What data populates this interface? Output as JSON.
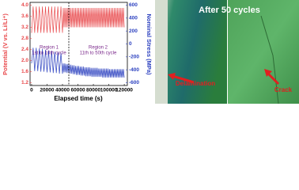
{
  "chart_data": {
    "type": "line",
    "xlabel": "Elapsed time (s)",
    "ylabel": "Potential (V vs. Li/Li⁺)",
    "y2label": "Nominal Stress (MPa)",
    "annotations": [
      "Region 1",
      "1st to 10th cycle",
      "Region 2",
      "11th to 50th cycle"
    ],
    "xlim": [
      -2000,
      124000
    ],
    "xticks": [
      0,
      20000,
      40000,
      60000,
      80000,
      100000,
      120000
    ],
    "ylim": [
      1.1,
      4.1
    ],
    "yticks": [
      1.2,
      1.6,
      {
        "value": 2,
        "label": "2.0"
      },
      2.4,
      2.8,
      3.2,
      3.6,
      {
        "value": 4,
        "label": "4.0"
      }
    ],
    "y2lim": [
      -643,
      643
    ],
    "y2ticks": [
      -600,
      -400,
      -200,
      0,
      200,
      400,
      600
    ],
    "x": [
      0,
      2000,
      4000,
      6000,
      8000,
      10000,
      12000,
      14000,
      16000,
      18000,
      20000,
      22000,
      24000,
      26000,
      28000,
      30000,
      32000,
      34000,
      36000,
      38000,
      40000,
      41000,
      42000,
      43000,
      44000,
      45000,
      46000,
      47000,
      48000,
      49000,
      50000,
      51000,
      52000,
      53000,
      54000,
      55000,
      56000,
      57000,
      58000,
      59000,
      60000,
      61000,
      62000,
      63000,
      64000,
      65000,
      66000,
      67000,
      68000,
      69000,
      70000,
      71000,
      72000,
      73000,
      74000,
      75000,
      76000,
      77000,
      78000,
      79000,
      80000,
      81000,
      82000,
      83000,
      84000,
      85000,
      86000,
      87000,
      88000,
      89000,
      90000,
      91000,
      92000,
      93000,
      94000,
      95000,
      96000,
      97000,
      98000,
      99000,
      100000,
      101000,
      102000,
      103000,
      104000,
      105000,
      106000,
      107000,
      108000,
      109000,
      110000,
      111000,
      112000,
      113000,
      114000,
      115000,
      116000,
      117000,
      118000,
      119000,
      120000
    ],
    "series": [
      {
        "color": "#e8474a",
        "axis": "y",
        "values": [
          3.0,
          3.95,
          3.0,
          3.95,
          3.0,
          3.95,
          3.0,
          3.95,
          3.0,
          3.95,
          3.0,
          3.95,
          3.0,
          3.95,
          3.0,
          3.95,
          3.0,
          3.95,
          3.0,
          3.95,
          3.0,
          3.9,
          3.2,
          3.9,
          3.2,
          3.9,
          3.2,
          3.9,
          3.2,
          3.9,
          3.2,
          3.9,
          3.2,
          3.9,
          3.2,
          3.9,
          3.2,
          3.9,
          3.2,
          3.9,
          3.2,
          3.9,
          3.2,
          3.9,
          3.2,
          3.9,
          3.2,
          3.9,
          3.2,
          3.9,
          3.2,
          3.9,
          3.2,
          3.9,
          3.2,
          3.9,
          3.2,
          3.9,
          3.2,
          3.9,
          3.2,
          3.9,
          3.2,
          3.9,
          3.2,
          3.9,
          3.2,
          3.9,
          3.2,
          3.9,
          3.2,
          3.9,
          3.2,
          3.9,
          3.2,
          3.9,
          3.2,
          3.9,
          3.2,
          3.9,
          3.2,
          3.9,
          3.2,
          3.9,
          3.2,
          3.9,
          3.2,
          3.9,
          3.2,
          3.9,
          3.2,
          3.9,
          3.2,
          3.9,
          3.2,
          3.9,
          3.2,
          3.9,
          3.2,
          3.9,
          3.2
        ]
      },
      {
        "color": "#2a3fbf",
        "axis": "y2",
        "values": [
          -300,
          -60,
          -420,
          -60,
          -420,
          -70,
          -430,
          -80,
          -430,
          -90,
          -440,
          -100,
          -440,
          -110,
          -450,
          -120,
          -450,
          -130,
          -460,
          -140,
          -460,
          -300,
          -440,
          -300,
          -440,
          -310,
          -450,
          -310,
          -450,
          -320,
          -460,
          -320,
          -460,
          -330,
          -470,
          -330,
          -470,
          -340,
          -480,
          -340,
          -480,
          -340,
          -480,
          -350,
          -490,
          -350,
          -490,
          -350,
          -490,
          -360,
          -500,
          -360,
          -500,
          -360,
          -500,
          -360,
          -500,
          -370,
          -510,
          -370,
          -510,
          -370,
          -510,
          -370,
          -510,
          -370,
          -510,
          -380,
          -510,
          -380,
          -510,
          -380,
          -520,
          -380,
          -520,
          -380,
          -520,
          -380,
          -520,
          -380,
          -520,
          -390,
          -520,
          -390,
          -520,
          -390,
          -520,
          -390,
          -520,
          -390,
          -520,
          -390,
          -520,
          -390,
          -520,
          -390,
          -520,
          -390,
          -520,
          -390,
          -520
        ]
      }
    ]
  },
  "image": {
    "title": "After 50 cycles",
    "labels": [
      "Delamination",
      "Crack"
    ]
  }
}
